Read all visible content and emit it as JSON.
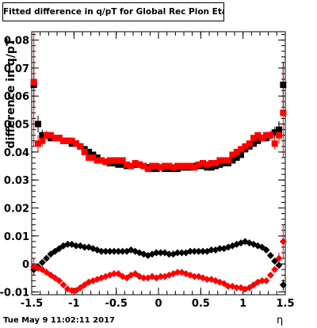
{
  "title": "Fitted difference in q/pT for Global Rec Pion EtapT",
  "timestamp": "Tue May  9 11:02:11 2017",
  "chart_data": {
    "type": "scatter",
    "xlabel": "η",
    "ylabel": "difference in q/pT",
    "xlim": [
      -1.5,
      1.5
    ],
    "ylim": [
      -0.011,
      0.083
    ],
    "x_ticks": [
      -1.5,
      -1,
      -0.5,
      0,
      0.5,
      1,
      1.5
    ],
    "x_tick_labels": [
      "-1.5",
      "-1",
      "-0.5",
      "0",
      "0.5",
      "1",
      "1.5"
    ],
    "y_ticks": [
      -0.01,
      0,
      0.01,
      0.02,
      0.03,
      0.04,
      0.05,
      0.06,
      0.07,
      0.08
    ],
    "y_tick_labels": [
      "-0.01",
      "0",
      "0.01",
      "0.02",
      "0.03",
      "0.04",
      "0.05",
      "0.06",
      "0.07",
      "0.08"
    ],
    "grid": false,
    "colors": {
      "black": "#000000",
      "red": "#ff0000"
    },
    "series": [
      {
        "marker": "square",
        "color": "#000000",
        "x": [
          -1.475,
          -1.425,
          -1.375,
          -1.325,
          -1.275,
          -1.225,
          -1.175,
          -1.125,
          -1.075,
          -1.025,
          -0.975,
          -0.925,
          -0.875,
          -0.825,
          -0.775,
          -0.725,
          -0.675,
          -0.625,
          -0.575,
          -0.525,
          -0.475,
          -0.425,
          -0.375,
          -0.325,
          -0.275,
          -0.225,
          -0.175,
          -0.125,
          -0.075,
          -0.025,
          0.025,
          0.075,
          0.125,
          0.175,
          0.225,
          0.275,
          0.325,
          0.375,
          0.425,
          0.475,
          0.525,
          0.575,
          0.625,
          0.675,
          0.725,
          0.775,
          0.825,
          0.875,
          0.925,
          0.975,
          1.025,
          1.075,
          1.125,
          1.175,
          1.225,
          1.275,
          1.325,
          1.375,
          1.425,
          1.475
        ],
        "y": [
          0.064,
          0.05,
          0.046,
          0.046,
          0.045,
          0.045,
          0.045,
          0.044,
          0.044,
          0.043,
          0.043,
          0.042,
          0.041,
          0.04,
          0.039,
          0.038,
          0.037,
          0.0365,
          0.036,
          0.036,
          0.0355,
          0.0355,
          0.035,
          0.035,
          0.0355,
          0.0355,
          0.035,
          0.0345,
          0.034,
          0.034,
          0.0345,
          0.034,
          0.034,
          0.034,
          0.034,
          0.0345,
          0.0345,
          0.0345,
          0.035,
          0.035,
          0.035,
          0.0345,
          0.0345,
          0.035,
          0.0355,
          0.036,
          0.036,
          0.037,
          0.038,
          0.039,
          0.041,
          0.042,
          0.043,
          0.044,
          0.045,
          0.045,
          0.046,
          0.047,
          0.048,
          0.064
        ],
        "yerr": [
          0.008,
          0.003,
          0.002,
          0.0015,
          0.0012,
          0.001,
          0.001,
          0.001,
          0.001,
          0.001,
          0.0008,
          0.0008,
          0.0008,
          0.0008,
          0.0008,
          0.0008,
          0.0008,
          0.0008,
          0.0008,
          0.0008,
          0.0008,
          0.0008,
          0.0008,
          0.0008,
          0.0008,
          0.0008,
          0.0008,
          0.0008,
          0.0008,
          0.0008,
          0.0008,
          0.0008,
          0.0008,
          0.0008,
          0.0008,
          0.0008,
          0.0008,
          0.0008,
          0.0008,
          0.0008,
          0.0008,
          0.0008,
          0.0008,
          0.0008,
          0.0008,
          0.0008,
          0.0008,
          0.0008,
          0.0008,
          0.0008,
          0.001,
          0.001,
          0.001,
          0.001,
          0.001,
          0.0012,
          0.0015,
          0.002,
          0.003,
          0.008
        ]
      },
      {
        "marker": "square",
        "color": "#ff0000",
        "x": [
          -1.475,
          -1.425,
          -1.375,
          -1.325,
          -1.275,
          -1.225,
          -1.175,
          -1.125,
          -1.075,
          -1.025,
          -0.975,
          -0.925,
          -0.875,
          -0.825,
          -0.775,
          -0.725,
          -0.675,
          -0.625,
          -0.575,
          -0.525,
          -0.475,
          -0.425,
          -0.375,
          -0.325,
          -0.275,
          -0.225,
          -0.175,
          -0.125,
          -0.075,
          -0.025,
          0.025,
          0.075,
          0.125,
          0.175,
          0.225,
          0.275,
          0.325,
          0.375,
          0.425,
          0.475,
          0.525,
          0.575,
          0.625,
          0.675,
          0.725,
          0.775,
          0.825,
          0.875,
          0.925,
          0.975,
          1.025,
          1.075,
          1.125,
          1.175,
          1.225,
          1.275,
          1.325,
          1.375,
          1.425,
          1.475
        ],
        "y": [
          0.065,
          0.043,
          0.044,
          0.046,
          0.046,
          0.045,
          0.045,
          0.044,
          0.044,
          0.044,
          0.043,
          0.042,
          0.04,
          0.038,
          0.038,
          0.037,
          0.037,
          0.0365,
          0.037,
          0.037,
          0.037,
          0.037,
          0.0355,
          0.035,
          0.036,
          0.0355,
          0.035,
          0.034,
          0.035,
          0.035,
          0.0345,
          0.035,
          0.035,
          0.0345,
          0.035,
          0.035,
          0.035,
          0.035,
          0.0345,
          0.0355,
          0.036,
          0.0355,
          0.036,
          0.036,
          0.037,
          0.037,
          0.037,
          0.039,
          0.04,
          0.041,
          0.042,
          0.043,
          0.045,
          0.046,
          0.045,
          0.046,
          0.046,
          0.043,
          0.046,
          0.054
        ],
        "yerr": [
          0.023,
          0.003,
          0.002,
          0.0015,
          0.0012,
          0.001,
          0.001,
          0.001,
          0.001,
          0.001,
          0.0008,
          0.0008,
          0.0008,
          0.0008,
          0.0008,
          0.0008,
          0.0008,
          0.0008,
          0.0008,
          0.0008,
          0.0008,
          0.0008,
          0.0008,
          0.0008,
          0.0008,
          0.0008,
          0.0008,
          0.0008,
          0.0008,
          0.0008,
          0.0008,
          0.0008,
          0.0008,
          0.0008,
          0.0008,
          0.0008,
          0.0008,
          0.0008,
          0.0008,
          0.0008,
          0.0008,
          0.0008,
          0.0008,
          0.0008,
          0.0008,
          0.0008,
          0.0008,
          0.0008,
          0.0008,
          0.0008,
          0.001,
          0.001,
          0.001,
          0.001,
          0.001,
          0.0012,
          0.0015,
          0.002,
          0.003,
          0.016
        ]
      },
      {
        "marker": "diamond",
        "color": "#000000",
        "x": [
          -1.475,
          -1.425,
          -1.375,
          -1.325,
          -1.275,
          -1.225,
          -1.175,
          -1.125,
          -1.075,
          -1.025,
          -0.975,
          -0.925,
          -0.875,
          -0.825,
          -0.775,
          -0.725,
          -0.675,
          -0.625,
          -0.575,
          -0.525,
          -0.475,
          -0.425,
          -0.375,
          -0.325,
          -0.275,
          -0.225,
          -0.175,
          -0.125,
          -0.075,
          -0.025,
          0.025,
          0.075,
          0.125,
          0.175,
          0.225,
          0.275,
          0.325,
          0.375,
          0.425,
          0.475,
          0.525,
          0.575,
          0.625,
          0.675,
          0.725,
          0.775,
          0.825,
          0.875,
          0.925,
          0.975,
          1.025,
          1.075,
          1.125,
          1.175,
          1.225,
          1.275,
          1.325,
          1.375,
          1.425,
          1.475
        ],
        "y": [
          -0.002,
          -0.001,
          0.0005,
          0.002,
          0.0035,
          0.0045,
          0.0055,
          0.0065,
          0.007,
          0.007,
          0.0065,
          0.0065,
          0.006,
          0.006,
          0.0055,
          0.005,
          0.0045,
          0.0045,
          0.0045,
          0.0045,
          0.0045,
          0.0045,
          0.0045,
          0.005,
          0.0045,
          0.004,
          0.0035,
          0.003,
          0.0035,
          0.004,
          0.004,
          0.004,
          0.0035,
          0.0035,
          0.004,
          0.004,
          0.004,
          0.0045,
          0.0045,
          0.0045,
          0.0045,
          0.0045,
          0.005,
          0.005,
          0.0055,
          0.0055,
          0.006,
          0.0065,
          0.007,
          0.0075,
          0.008,
          0.0075,
          0.007,
          0.0065,
          0.006,
          0.005,
          0.003,
          0.001,
          -0.0005,
          -0.0075
        ],
        "yerr": [
          0.002,
          0.001,
          0.0008,
          0.0006,
          0.0005,
          0.0004,
          0.0004,
          0.0004,
          0.0004,
          0.0004,
          0.0003,
          0.0003,
          0.0003,
          0.0003,
          0.0003,
          0.0003,
          0.0003,
          0.0003,
          0.0003,
          0.0003,
          0.0003,
          0.0003,
          0.0003,
          0.0003,
          0.0003,
          0.0003,
          0.0003,
          0.0003,
          0.0003,
          0.0003,
          0.0003,
          0.0003,
          0.0003,
          0.0003,
          0.0003,
          0.0003,
          0.0003,
          0.0003,
          0.0003,
          0.0003,
          0.0003,
          0.0003,
          0.0003,
          0.0003,
          0.0003,
          0.0003,
          0.0003,
          0.0003,
          0.0003,
          0.0003,
          0.0004,
          0.0004,
          0.0004,
          0.0004,
          0.0004,
          0.0005,
          0.0006,
          0.0008,
          0.001,
          0.002
        ]
      },
      {
        "marker": "diamond",
        "color": "#ff0000",
        "x": [
          -1.475,
          -1.425,
          -1.375,
          -1.325,
          -1.275,
          -1.225,
          -1.175,
          -1.125,
          -1.075,
          -1.025,
          -0.975,
          -0.925,
          -0.875,
          -0.825,
          -0.775,
          -0.725,
          -0.675,
          -0.625,
          -0.575,
          -0.525,
          -0.475,
          -0.425,
          -0.375,
          -0.325,
          -0.275,
          -0.225,
          -0.175,
          -0.125,
          -0.075,
          -0.025,
          0.025,
          0.075,
          0.125,
          0.175,
          0.225,
          0.275,
          0.325,
          0.375,
          0.425,
          0.475,
          0.525,
          0.575,
          0.625,
          0.675,
          0.725,
          0.775,
          0.825,
          0.875,
          0.925,
          0.975,
          1.025,
          1.075,
          1.125,
          1.175,
          1.225,
          1.275,
          1.325,
          1.375,
          1.425,
          1.475
        ],
        "y": [
          -0.001,
          -0.0015,
          -0.002,
          -0.003,
          -0.004,
          -0.005,
          -0.006,
          -0.0075,
          -0.009,
          -0.0095,
          -0.0095,
          -0.0085,
          -0.0075,
          -0.0065,
          -0.006,
          -0.0055,
          -0.005,
          -0.0045,
          -0.004,
          -0.0035,
          -0.0035,
          -0.0045,
          -0.005,
          -0.004,
          -0.0035,
          -0.0045,
          -0.005,
          -0.005,
          -0.0045,
          -0.005,
          -0.0045,
          -0.0045,
          -0.004,
          -0.0035,
          -0.003,
          -0.003,
          -0.0035,
          -0.004,
          -0.0045,
          -0.0045,
          -0.005,
          -0.0055,
          -0.0055,
          -0.006,
          -0.0065,
          -0.007,
          -0.008,
          -0.008,
          -0.0085,
          -0.0085,
          -0.009,
          -0.0085,
          -0.0075,
          -0.0065,
          -0.006,
          -0.006,
          -0.004,
          -0.002,
          0.002,
          0.008
        ],
        "yerr": [
          0.003,
          0.001,
          0.0008,
          0.0006,
          0.0005,
          0.0004,
          0.0004,
          0.0004,
          0.0004,
          0.0004,
          0.0003,
          0.0003,
          0.0003,
          0.0003,
          0.0003,
          0.0003,
          0.0003,
          0.0003,
          0.0003,
          0.0003,
          0.0003,
          0.0003,
          0.0003,
          0.0003,
          0.0003,
          0.0003,
          0.0003,
          0.0003,
          0.0003,
          0.0003,
          0.0003,
          0.0003,
          0.0003,
          0.0003,
          0.0003,
          0.0003,
          0.0003,
          0.0003,
          0.0003,
          0.0003,
          0.0003,
          0.0003,
          0.0003,
          0.0003,
          0.0003,
          0.0003,
          0.0003,
          0.0003,
          0.0003,
          0.0003,
          0.0004,
          0.0004,
          0.0004,
          0.0004,
          0.0004,
          0.0005,
          0.0006,
          0.0008,
          0.002,
          0.006
        ]
      }
    ]
  }
}
